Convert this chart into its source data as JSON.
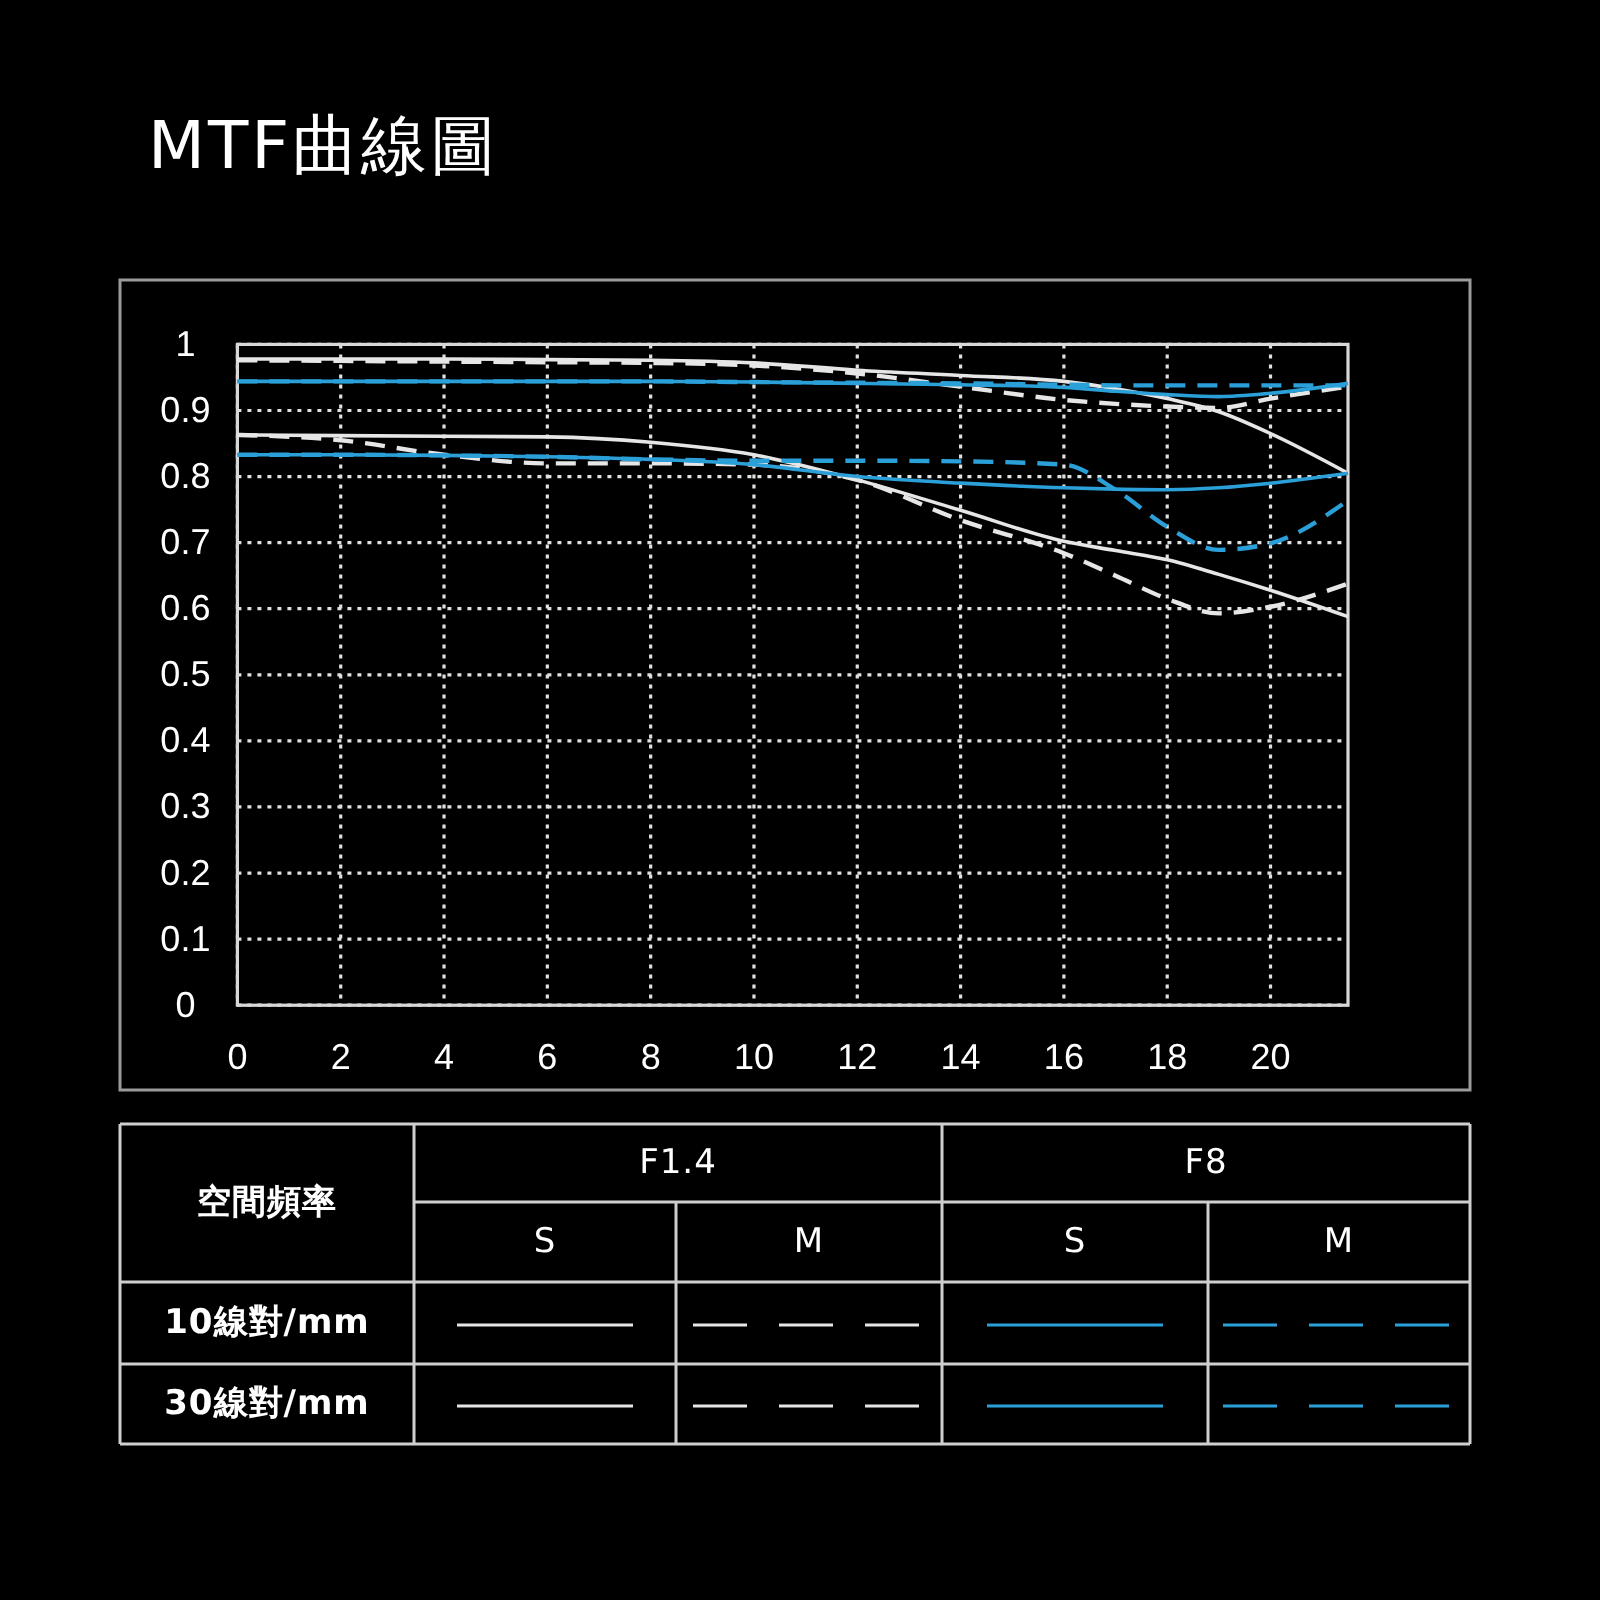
{
  "chart_data": {
    "type": "line",
    "title": "MTF曲線圖",
    "x": [
      0,
      2,
      4,
      6,
      8,
      10,
      12,
      14,
      16,
      17,
      18,
      19,
      20,
      21.5
    ],
    "xlim": [
      0,
      21.5
    ],
    "xticks": [
      0,
      2,
      4,
      6,
      8,
      10,
      12,
      14,
      16,
      18,
      20
    ],
    "ylim": [
      0,
      1
    ],
    "yticks": [
      0,
      0.1,
      0.2,
      0.3,
      0.4,
      0.5,
      0.6,
      0.7,
      0.8,
      0.9,
      1
    ],
    "grid": true,
    "series": [
      {
        "color": "#e6e6e6",
        "line_style": "solid",
        "values": [
          0.978,
          0.978,
          0.978,
          0.977,
          0.976,
          0.972,
          0.961,
          0.953,
          0.944,
          0.933,
          0.918,
          0.898,
          0.865,
          0.805
        ]
      },
      {
        "color": "#e6e6e6",
        "line_style": "dashed",
        "values": [
          0.976,
          0.975,
          0.974,
          0.973,
          0.972,
          0.968,
          0.956,
          0.936,
          0.916,
          0.91,
          0.906,
          0.904,
          0.918,
          0.936
        ]
      },
      {
        "color": "#2b9fd8",
        "line_style": "solid",
        "values": [
          0.944,
          0.944,
          0.944,
          0.944,
          0.944,
          0.943,
          0.941,
          0.939,
          0.935,
          0.929,
          0.924,
          0.921,
          0.926,
          0.941
        ]
      },
      {
        "color": "#2b9fd8",
        "line_style": "dashed",
        "values": [
          0.944,
          0.944,
          0.944,
          0.944,
          0.944,
          0.943,
          0.942,
          0.941,
          0.939,
          0.938,
          0.938,
          0.938,
          0.938,
          0.938
        ]
      },
      {
        "color": "#e6e6e6",
        "line_style": "solid",
        "values": [
          0.863,
          0.862,
          0.861,
          0.86,
          0.852,
          0.833,
          0.795,
          0.749,
          0.702,
          0.688,
          0.674,
          0.652,
          0.628,
          0.588
        ]
      },
      {
        "color": "#e6e6e6",
        "line_style": "dashed",
        "values": [
          0.863,
          0.855,
          0.833,
          0.82,
          0.82,
          0.818,
          0.795,
          0.734,
          0.684,
          0.65,
          0.615,
          0.593,
          0.603,
          0.638
        ]
      },
      {
        "color": "#2b9fd8",
        "line_style": "solid",
        "values": [
          0.833,
          0.833,
          0.832,
          0.83,
          0.826,
          0.818,
          0.8,
          0.79,
          0.783,
          0.781,
          0.78,
          0.783,
          0.79,
          0.805
        ]
      },
      {
        "color": "#2b9fd8",
        "line_style": "dashed",
        "values": [
          0.833,
          0.833,
          0.832,
          0.83,
          0.826,
          0.824,
          0.824,
          0.823,
          0.818,
          0.78,
          0.724,
          0.689,
          0.699,
          0.764
        ]
      }
    ],
    "annotations": [
      "空間頻率",
      "F1.4",
      "F8",
      "S",
      "M",
      "S",
      "M",
      "10線對/mm",
      "30線對/mm"
    ]
  }
}
